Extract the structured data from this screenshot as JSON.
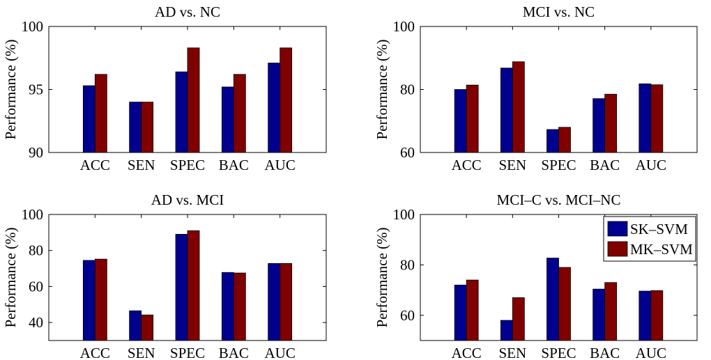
{
  "legend_colors": {
    "SK-SVM": "#00008f",
    "MK-SVM": "#800000"
  },
  "chart_data": [
    {
      "type": "bar",
      "title": "AD vs. NC",
      "xlabel": "",
      "ylabel": "Performance (%)",
      "ylim": [
        90,
        100
      ],
      "yticks": [
        90,
        95,
        100
      ],
      "categories": [
        "ACC",
        "SEN",
        "SPEC",
        "BAC",
        "AUC"
      ],
      "series": [
        {
          "name": "SK–SVM",
          "values": [
            95.3,
            94.0,
            96.4,
            95.2,
            97.1
          ]
        },
        {
          "name": "MK–SVM",
          "values": [
            96.2,
            94.0,
            98.3,
            96.2,
            98.3
          ]
        }
      ],
      "legend": false
    },
    {
      "type": "bar",
      "title": "MCI vs. NC",
      "xlabel": "",
      "ylabel": "Performance (%)",
      "ylim": [
        60,
        100
      ],
      "yticks": [
        60,
        80,
        100
      ],
      "categories": [
        "ACC",
        "SEN",
        "SPEC",
        "BAC",
        "AUC"
      ],
      "series": [
        {
          "name": "SK–SVM",
          "values": [
            80.0,
            86.8,
            67.3,
            77.1,
            81.8
          ]
        },
        {
          "name": "MK–SVM",
          "values": [
            81.4,
            88.8,
            68.0,
            78.5,
            81.5
          ]
        }
      ],
      "legend": false
    },
    {
      "type": "bar",
      "title": "AD vs. MCI",
      "xlabel": "",
      "ylabel": "Performance (%)",
      "ylim": [
        30,
        100
      ],
      "yticks": [
        40,
        60,
        80,
        100
      ],
      "categories": [
        "ACC",
        "SEN",
        "SPEC",
        "BAC",
        "AUC"
      ],
      "series": [
        {
          "name": "SK–SVM",
          "values": [
            74.5,
            46.5,
            89.0,
            67.8,
            72.8
          ]
        },
        {
          "name": "MK–SVM",
          "values": [
            75.2,
            44.2,
            91.0,
            67.5,
            72.8
          ]
        }
      ],
      "legend": false
    },
    {
      "type": "bar",
      "title": "MCI–C vs. MCI–NC",
      "xlabel": "",
      "ylabel": "Performance (%)",
      "ylim": [
        50,
        100
      ],
      "yticks": [
        60,
        80,
        100
      ],
      "categories": [
        "ACC",
        "SEN",
        "SPEC",
        "BAC",
        "AUC"
      ],
      "series": [
        {
          "name": "SK–SVM",
          "values": [
            72.0,
            58.0,
            82.7,
            70.4,
            69.6
          ]
        },
        {
          "name": "MK–SVM",
          "values": [
            74.0,
            67.0,
            79.0,
            73.0,
            69.8
          ]
        }
      ],
      "legend": true,
      "legend_position": "top-right"
    }
  ]
}
